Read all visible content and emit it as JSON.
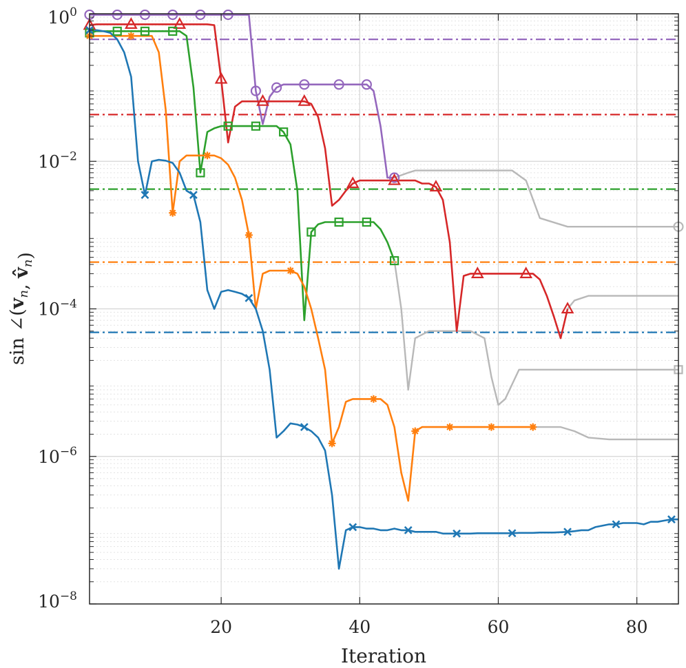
{
  "chart_data": {
    "type": "line",
    "title": "",
    "xlabel": "Iteration",
    "ylabel": "sin ∠(v_n, v̂_n)",
    "xscale": "linear",
    "yscale": "log",
    "xlim": [
      1,
      86
    ],
    "ylim": [
      1e-08,
      1
    ],
    "xticks": [
      20,
      40,
      60,
      80
    ],
    "xtick_labels": [
      "20",
      "40",
      "60",
      "80"
    ],
    "yticks": [
      1,
      0.01,
      0.0001,
      1e-06,
      1e-08
    ],
    "ytick_labels": [
      {
        "base": "10",
        "exp": "0"
      },
      {
        "base": "10",
        "exp": "−2"
      },
      {
        "base": "10",
        "exp": "−4"
      },
      {
        "base": "10",
        "exp": "−6"
      },
      {
        "base": "10",
        "exp": "−8"
      }
    ],
    "grid": true,
    "minor_grid": true,
    "colors": {
      "blue": "#1f77b4",
      "orange": "#ff7f0e",
      "green": "#2ca02c",
      "red": "#d62728",
      "purple": "#9467bd",
      "gray": "#b8b8b8",
      "grid_major": "#d4d4d4",
      "grid_minor": "#e3e3e3",
      "axis": "#262626"
    },
    "series": [
      {
        "name": "purple",
        "color": "#9467bd",
        "marker": "circle",
        "threshold": 0.45,
        "x": [
          1,
          2,
          3,
          4,
          5,
          6,
          7,
          8,
          9,
          10,
          11,
          12,
          13,
          14,
          15,
          16,
          17,
          18,
          19,
          20,
          21,
          22,
          23,
          24,
          25,
          26,
          27,
          28,
          29,
          30,
          31,
          32,
          33,
          34,
          35,
          36,
          37,
          38,
          39,
          40,
          41,
          42,
          43,
          44,
          45
        ],
        "y": [
          0.97,
          0.97,
          0.97,
          0.97,
          0.97,
          0.97,
          0.97,
          0.97,
          0.97,
          0.97,
          0.97,
          0.97,
          0.97,
          0.97,
          0.97,
          0.97,
          0.97,
          0.97,
          0.97,
          0.97,
          0.97,
          0.97,
          0.97,
          0.97,
          0.09,
          0.032,
          0.075,
          0.1,
          0.11,
          0.11,
          0.11,
          0.11,
          0.11,
          0.11,
          0.11,
          0.11,
          0.11,
          0.11,
          0.11,
          0.11,
          0.11,
          0.09,
          0.03,
          0.006,
          0.006
        ],
        "marker_x": [
          1,
          5,
          9,
          13,
          17,
          21,
          25,
          28,
          32,
          37,
          41,
          45
        ],
        "tail_x": [
          45,
          47,
          48,
          52,
          58,
          62,
          64,
          66,
          70,
          76,
          80,
          86
        ],
        "tail_y": [
          0.006,
          0.007,
          0.0075,
          0.0075,
          0.0075,
          0.0075,
          0.0055,
          0.0017,
          0.0013,
          0.0013,
          0.0013,
          0.0013
        ],
        "tail_marker_x": [
          86
        ]
      },
      {
        "name": "red",
        "color": "#d62728",
        "marker": "triangle",
        "threshold": 0.043,
        "x": [
          1,
          2,
          3,
          4,
          5,
          6,
          7,
          8,
          9,
          10,
          11,
          12,
          13,
          14,
          15,
          16,
          17,
          18,
          19,
          20,
          21,
          22,
          23,
          24,
          25,
          26,
          27,
          28,
          29,
          30,
          31,
          32,
          33,
          34,
          35,
          36,
          37,
          38,
          39,
          40,
          41,
          42,
          43,
          44,
          45,
          46,
          47,
          48,
          49,
          50,
          51,
          52,
          53,
          54,
          55,
          56,
          57,
          58,
          59,
          60,
          61,
          62,
          63,
          64,
          65,
          66,
          67,
          68,
          69,
          70
        ],
        "y": [
          0.7,
          0.72,
          0.72,
          0.72,
          0.72,
          0.72,
          0.72,
          0.72,
          0.72,
          0.72,
          0.72,
          0.72,
          0.72,
          0.72,
          0.72,
          0.72,
          0.72,
          0.72,
          0.7,
          0.13,
          0.018,
          0.055,
          0.065,
          0.065,
          0.065,
          0.065,
          0.065,
          0.065,
          0.065,
          0.065,
          0.065,
          0.065,
          0.06,
          0.04,
          0.015,
          0.0025,
          0.003,
          0.004,
          0.005,
          0.0055,
          0.0055,
          0.0055,
          0.0055,
          0.0055,
          0.0055,
          0.0055,
          0.0055,
          0.0055,
          0.005,
          0.005,
          0.0045,
          0.003,
          0.0008,
          5e-05,
          0.00028,
          0.0003,
          0.0003,
          0.0003,
          0.0003,
          0.0003,
          0.0003,
          0.0003,
          0.0003,
          0.0003,
          0.0003,
          0.00025,
          0.00015,
          8e-05,
          4e-05,
          0.0001
        ],
        "marker_x": [
          1,
          7,
          14,
          20,
          26,
          32,
          39,
          45,
          51,
          57,
          64,
          70
        ],
        "tail_x": [
          70,
          71,
          73,
          78,
          86
        ],
        "tail_y": [
          0.0001,
          0.00013,
          0.00015,
          0.00015,
          0.00015
        ],
        "tail_marker_x": []
      },
      {
        "name": "green",
        "color": "#2ca02c",
        "marker": "square",
        "threshold": 0.0042,
        "x": [
          1,
          2,
          3,
          4,
          5,
          6,
          7,
          8,
          9,
          10,
          11,
          12,
          13,
          14,
          15,
          16,
          17,
          18,
          19,
          20,
          21,
          22,
          23,
          24,
          25,
          26,
          27,
          28,
          29,
          30,
          31,
          32,
          33,
          34,
          35,
          36,
          37,
          38,
          39,
          40,
          41,
          42,
          43,
          44,
          45
        ],
        "y": [
          0.55,
          0.58,
          0.58,
          0.58,
          0.58,
          0.58,
          0.58,
          0.58,
          0.58,
          0.58,
          0.58,
          0.58,
          0.58,
          0.58,
          0.5,
          0.1,
          0.007,
          0.025,
          0.028,
          0.03,
          0.03,
          0.03,
          0.03,
          0.03,
          0.03,
          0.03,
          0.03,
          0.03,
          0.025,
          0.017,
          0.004,
          7e-05,
          0.0011,
          0.0014,
          0.0015,
          0.0015,
          0.0015,
          0.0015,
          0.0015,
          0.0015,
          0.0015,
          0.0015,
          0.0012,
          0.0008,
          0.00045
        ],
        "marker_x": [
          1,
          5,
          9,
          13,
          17,
          21,
          25,
          29,
          33,
          37,
          41,
          45
        ],
        "tail_x": [
          45,
          46,
          47,
          48,
          50,
          53,
          56,
          58,
          59,
          60,
          61,
          63,
          70,
          78,
          86
        ],
        "tail_y": [
          0.00045,
          0.0001,
          8e-06,
          4e-05,
          5e-05,
          5e-05,
          5e-05,
          4e-05,
          1.2e-05,
          5e-06,
          6e-06,
          1.5e-05,
          1.5e-05,
          1.5e-05,
          1.5e-05
        ],
        "tail_marker_x": [
          86
        ]
      },
      {
        "name": "orange",
        "color": "#ff7f0e",
        "marker": "asterisk",
        "threshold": 0.00043,
        "x": [
          1,
          2,
          3,
          4,
          5,
          6,
          7,
          8,
          9,
          10,
          11,
          12,
          13,
          14,
          15,
          16,
          17,
          18,
          19,
          20,
          21,
          22,
          23,
          24,
          25,
          26,
          27,
          28,
          29,
          30,
          31,
          32,
          33,
          34,
          35,
          36,
          37,
          38,
          39,
          40,
          41,
          42,
          43,
          44,
          45,
          46,
          47,
          48,
          49,
          50,
          51,
          52,
          53,
          54,
          55,
          56,
          57,
          58,
          59,
          60,
          61,
          62,
          63,
          64,
          65
        ],
        "y": [
          0.5,
          0.5,
          0.5,
          0.5,
          0.5,
          0.5,
          0.5,
          0.5,
          0.5,
          0.5,
          0.3,
          0.05,
          0.002,
          0.01,
          0.012,
          0.012,
          0.012,
          0.012,
          0.012,
          0.011,
          0.009,
          0.006,
          0.003,
          0.001,
          0.0001,
          0.0003,
          0.00033,
          0.00033,
          0.00033,
          0.00033,
          0.0003,
          0.0002,
          0.0001,
          4e-05,
          1.5e-05,
          1.5e-06,
          2.5e-06,
          5.5e-06,
          6e-06,
          6e-06,
          6e-06,
          6e-06,
          6e-06,
          5e-06,
          2.5e-06,
          6e-07,
          2.5e-07,
          2.2e-06,
          2.5e-06,
          2.5e-06,
          2.5e-06,
          2.5e-06,
          2.5e-06,
          2.5e-06,
          2.5e-06,
          2.5e-06,
          2.5e-06,
          2.5e-06,
          2.5e-06,
          2.5e-06,
          2.5e-06,
          2.5e-06,
          2.5e-06,
          2.5e-06,
          2.5e-06
        ],
        "marker_x": [
          1,
          7,
          13,
          18,
          24,
          30,
          36,
          42,
          48,
          53,
          59,
          65
        ],
        "tail_x": [
          65,
          69,
          71,
          73,
          76,
          86
        ],
        "tail_y": [
          2.5e-06,
          2.5e-06,
          2.2e-06,
          1.8e-06,
          1.7e-06,
          1.7e-06
        ],
        "tail_marker_x": []
      },
      {
        "name": "blue",
        "color": "#1f77b4",
        "marker": "x",
        "threshold": 4.8e-05,
        "x": [
          1,
          2,
          3,
          4,
          5,
          6,
          7,
          8,
          9,
          10,
          11,
          12,
          13,
          14,
          15,
          16,
          17,
          18,
          19,
          20,
          21,
          22,
          23,
          24,
          25,
          26,
          27,
          28,
          29,
          30,
          31,
          32,
          33,
          34,
          35,
          36,
          37,
          38,
          39,
          40,
          41,
          42,
          43,
          44,
          45,
          46,
          47,
          48,
          49,
          50,
          51,
          52,
          53,
          54,
          55,
          56,
          57,
          58,
          59,
          60,
          61,
          62,
          63,
          64,
          65,
          66,
          67,
          68,
          69,
          70,
          71,
          72,
          73,
          74,
          75,
          76,
          77,
          78,
          79,
          80,
          81,
          82,
          83,
          84,
          85,
          86
        ],
        "y": [
          0.6,
          0.6,
          0.58,
          0.55,
          0.45,
          0.3,
          0.14,
          0.01,
          0.0035,
          0.01,
          0.0105,
          0.0102,
          0.0095,
          0.007,
          0.004,
          0.0035,
          0.0015,
          0.00018,
          0.0001,
          0.00017,
          0.00018,
          0.00017,
          0.00016,
          0.00014,
          0.0001,
          5e-05,
          1.5e-05,
          1.8e-06,
          2.2e-06,
          2.8e-06,
          2.7e-06,
          2.5e-06,
          2.2e-06,
          1.8e-06,
          1.2e-06,
          3e-07,
          3e-08,
          1e-07,
          1.1e-07,
          1.1e-07,
          1.05e-07,
          1.05e-07,
          1e-07,
          1e-07,
          1.05e-07,
          1e-07,
          1e-07,
          9.5e-08,
          9.5e-08,
          9.5e-08,
          9.5e-08,
          9e-08,
          9e-08,
          9e-08,
          9e-08,
          9e-08,
          9.1e-08,
          9.1e-08,
          9.1e-08,
          9.1e-08,
          9.1e-08,
          9.1e-08,
          9.2e-08,
          9.2e-08,
          9.2e-08,
          9.3e-08,
          9.3e-08,
          9.3e-08,
          9.4e-08,
          9.5e-08,
          9.7e-08,
          1e-07,
          1e-07,
          1.1e-07,
          1.15e-07,
          1.2e-07,
          1.2e-07,
          1.25e-07,
          1.25e-07,
          1.25e-07,
          1.2e-07,
          1.3e-07,
          1.3e-07,
          1.35e-07,
          1.4e-07,
          1.4e-07
        ],
        "marker_x": [
          1,
          9,
          16,
          24,
          32,
          39,
          47,
          54,
          62,
          70,
          77,
          85
        ],
        "tail_x": [],
        "tail_y": [],
        "tail_marker_x": []
      }
    ]
  }
}
